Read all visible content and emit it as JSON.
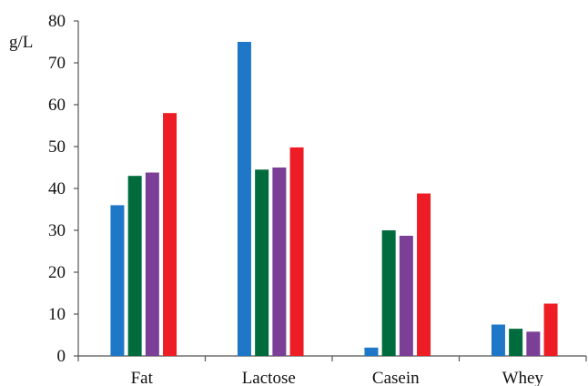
{
  "chart_data": {
    "type": "bar",
    "unit_label": "g/L",
    "categories": [
      "Fat",
      "Lactose",
      "Casein",
      "Whey"
    ],
    "ylim": [
      0,
      80
    ],
    "yticks": [
      0,
      10,
      20,
      30,
      40,
      50,
      60,
      70,
      80
    ],
    "ytick_labels": [
      "0",
      "10",
      "20",
      "30",
      "40",
      "50",
      "60",
      "70",
      "80"
    ],
    "grid": false,
    "series": [
      {
        "color": "#1f77c8",
        "values": [
          36,
          75,
          2,
          7.5
        ]
      },
      {
        "color": "#006b3c",
        "values": [
          43,
          44.5,
          30,
          6.5
        ]
      },
      {
        "color": "#7b3f98",
        "values": [
          43.8,
          45,
          28.7,
          5.8
        ]
      },
      {
        "color": "#ee1c25",
        "values": [
          58,
          49.8,
          38.8,
          12.5
        ]
      }
    ]
  }
}
